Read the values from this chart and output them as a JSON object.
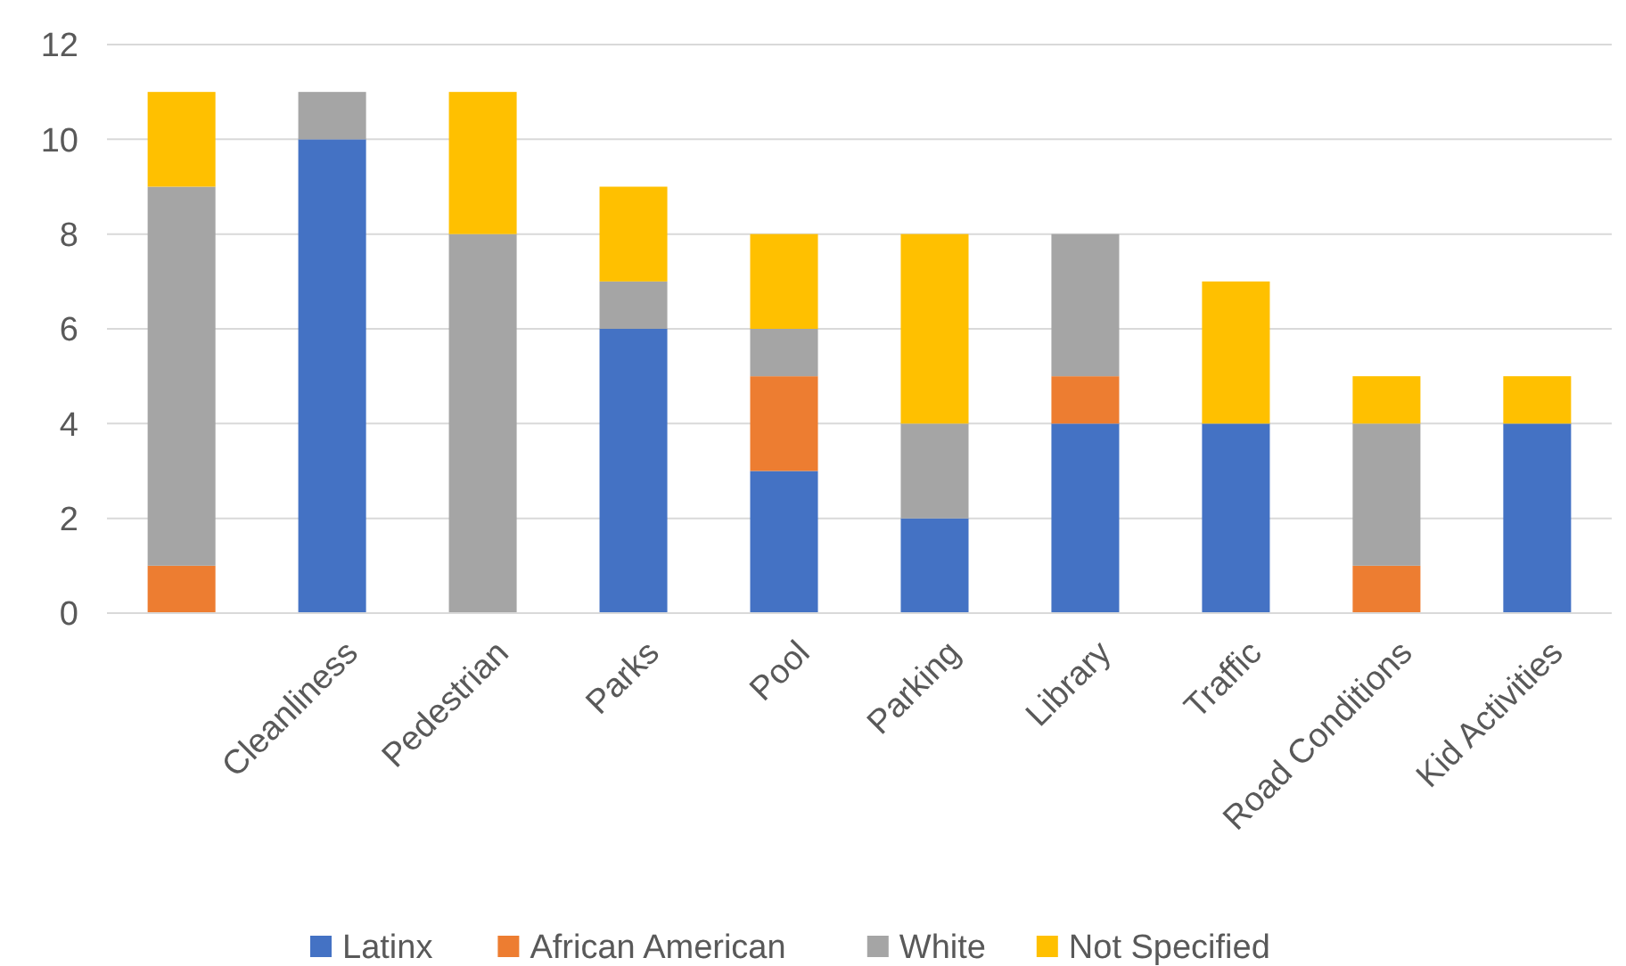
{
  "chart_data": {
    "type": "bar",
    "stacked": true,
    "categories": [
      null,
      "Cleanliness",
      "Pedestrian",
      "Parks",
      "Pool",
      "Parking",
      "Library",
      "Traffic",
      "Road Conditions",
      "Kid Activities"
    ],
    "series": [
      {
        "name": "Latinx",
        "color": "#4472c4",
        "values": [
          0,
          10,
          0,
          6,
          3,
          2,
          4,
          4,
          0,
          4
        ]
      },
      {
        "name": "African American",
        "color": "#ed7d31",
        "values": [
          1,
          0,
          0,
          0,
          2,
          0,
          1,
          0,
          1,
          0
        ]
      },
      {
        "name": "White",
        "color": "#a5a5a5",
        "values": [
          8,
          1,
          8,
          1,
          1,
          2,
          3,
          0,
          3,
          0
        ]
      },
      {
        "name": "Not Specified",
        "color": "#ffc000",
        "values": [
          2,
          0,
          3,
          2,
          2,
          4,
          0,
          3,
          1,
          1
        ]
      }
    ],
    "ylim": [
      0,
      12
    ],
    "yticks": [
      0,
      2,
      4,
      6,
      8,
      10,
      12
    ],
    "grid": "y",
    "legend": "bottom"
  }
}
